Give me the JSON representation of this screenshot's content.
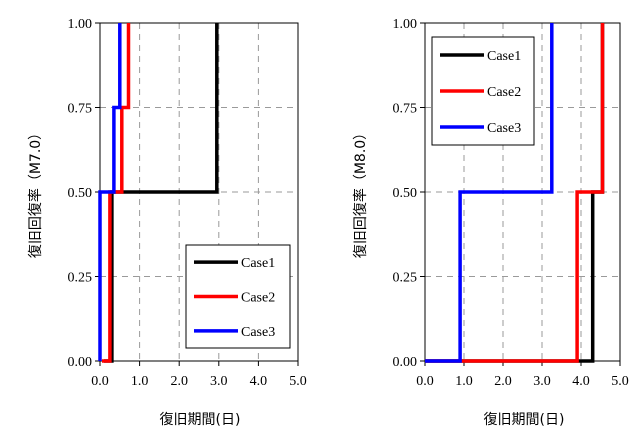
{
  "chart_data": [
    {
      "type": "line",
      "step": true,
      "xlabel": "復旧期間(日)",
      "ylabel": "復旧回復率（M7.0）",
      "xlim": [
        0,
        5.0
      ],
      "ylim": [
        0,
        1.0
      ],
      "xticks": [
        "0.0",
        "1.0",
        "2.0",
        "3.0",
        "4.0",
        "5.0"
      ],
      "yticks": [
        "0.00",
        "0.25",
        "0.50",
        "0.75",
        "1.00"
      ],
      "grid": true,
      "legend_position": "bottom-right",
      "series": [
        {
          "name": "Case1",
          "color": "#000000",
          "x": [
            0.1,
            0.3,
            0.3,
            2.95,
            2.95
          ],
          "y": [
            0,
            0,
            0.5,
            0.5,
            1.0
          ]
        },
        {
          "name": "Case2",
          "color": "#ff0000",
          "x": [
            0.05,
            0.25,
            0.25,
            0.55,
            0.55,
            0.72,
            0.72
          ],
          "y": [
            0,
            0,
            0.5,
            0.5,
            0.75,
            0.75,
            1.0
          ]
        },
        {
          "name": "Case3",
          "color": "#0000ff",
          "x": [
            0.0,
            0.0,
            0.35,
            0.35,
            0.5,
            0.5
          ],
          "y": [
            0,
            0.5,
            0.5,
            0.75,
            0.75,
            1.0
          ]
        }
      ]
    },
    {
      "type": "line",
      "step": true,
      "xlabel": "復旧期間(日)",
      "ylabel": "復旧回復率（M8.0）",
      "xlim": [
        0,
        5.0
      ],
      "ylim": [
        0,
        1.0
      ],
      "xticks": [
        "0.0",
        "1.0",
        "2.0",
        "3.0",
        "4.0",
        "5.0"
      ],
      "yticks": [
        "0.00",
        "0.25",
        "0.50",
        "0.75",
        "1.00"
      ],
      "grid": true,
      "legend_position": "top-left",
      "series": [
        {
          "name": "Case1",
          "color": "#000000",
          "x": [
            0.0,
            4.3,
            4.3,
            4.55,
            4.55
          ],
          "y": [
            0,
            0,
            0.5,
            0.5,
            1.0
          ]
        },
        {
          "name": "Case2",
          "color": "#ff0000",
          "x": [
            0.0,
            3.9,
            3.9,
            4.55,
            4.55
          ],
          "y": [
            0,
            0,
            0.5,
            0.5,
            1.0
          ]
        },
        {
          "name": "Case3",
          "color": "#0000ff",
          "x": [
            0.0,
            0.9,
            0.9,
            3.25,
            3.25
          ],
          "y": [
            0,
            0,
            0.5,
            0.5,
            1.0
          ]
        }
      ]
    }
  ]
}
